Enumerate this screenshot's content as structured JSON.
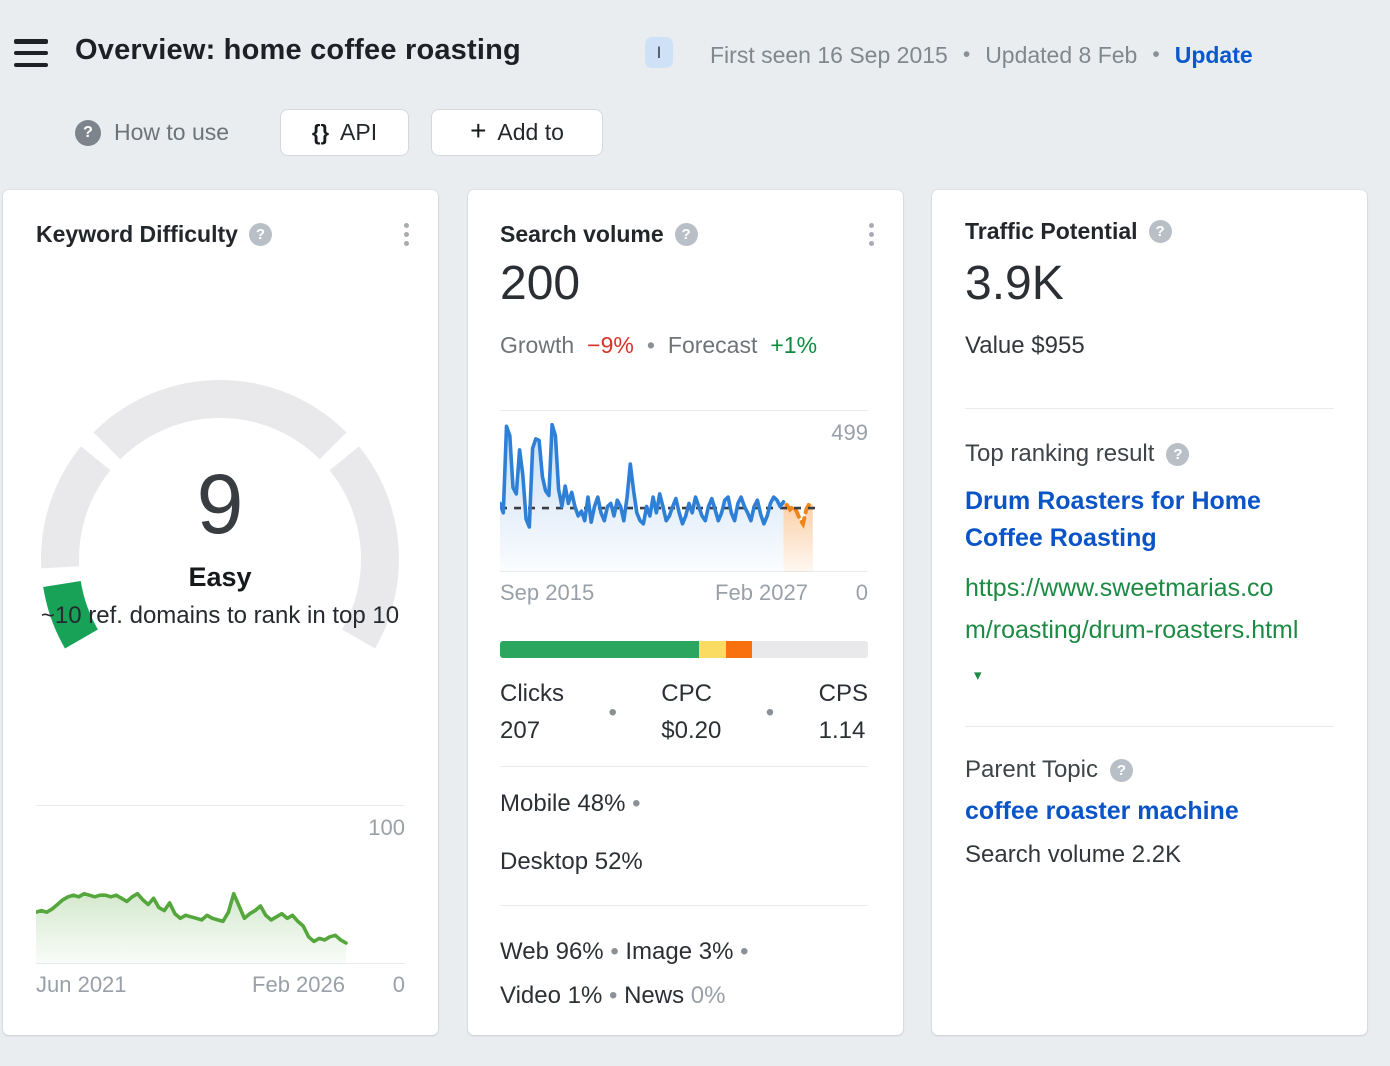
{
  "header": {
    "title": "Overview: home coffee roasting",
    "shortcut_badge": "I",
    "first_seen": "First seen 16 Sep 2015",
    "updated": "Updated 8 Feb",
    "update_link": "Update"
  },
  "toolbar": {
    "how_to_use": "How to use",
    "api_label": "API",
    "add_to_label": "Add to"
  },
  "icons": {
    "question_mark": "?",
    "braces": "{}",
    "plus": "+",
    "caret_down": "▾",
    "bullet": "•"
  },
  "keyword_difficulty": {
    "title": "Keyword Difficulty",
    "score": "9",
    "rating": "Easy",
    "subtitle": "~10 ref. domains to rank in top 10"
  },
  "search_volume": {
    "title": "Search volume",
    "value": "200",
    "growth_label": "Growth",
    "growth_value": "−9%",
    "forecast_label": "Forecast",
    "forecast_value": "+1%",
    "clicks_label": "Clicks",
    "clicks_value": "207",
    "cpc_label": "CPC",
    "cpc_value": "$0.20",
    "cps_label": "CPS",
    "cps_value": "1.14",
    "mobile_label": "Mobile",
    "mobile_value": "48%",
    "desktop_label": "Desktop",
    "desktop_value": "52%",
    "web_label": "Web",
    "web_value": "96%",
    "image_label": "Image",
    "image_value": "3%",
    "video_label": "Video",
    "video_value": "1%",
    "news_label": "News",
    "news_value": "0%"
  },
  "traffic_potential": {
    "title": "Traffic Potential",
    "value": "3.9K",
    "value_line": "Value $955",
    "top_ranking_label": "Top ranking result",
    "top_ranking_title": "Drum Roasters for Home Coffee Roasting",
    "top_ranking_url": "https://www.sweetmarias.com/roasting/drum-roasters.html",
    "parent_topic_label": "Parent Topic",
    "parent_topic": "coffee roaster machine",
    "parent_topic_volume": "Search volume 2.2K"
  },
  "chart_data": [
    {
      "type": "gauge",
      "name": "keyword-difficulty-gauge",
      "value": 9,
      "max": 100,
      "segment_boundaries": [
        0,
        10,
        30,
        70,
        100
      ],
      "start_angle": 210,
      "end_angle": -30,
      "gap_degrees": 3,
      "track_color": "#e9e9eb",
      "fill_color": "#17a257",
      "center_label": "9",
      "rating_label": "Easy",
      "annotation": "~10 ref. domains to rank in top 10"
    },
    {
      "type": "area",
      "name": "keyword-difficulty-history",
      "xlabel_left": "Jun 2021",
      "xlabel_right": "Feb 2026",
      "y_top_label": "100",
      "y_zero_label": "0",
      "ylim": [
        0,
        100
      ],
      "extent": 0.84,
      "line_color": "#55a63c",
      "fill_from": "rgba(85,166,60,0.25)",
      "fill_to": "rgba(85,166,60,0.03)",
      "values": [
        33,
        34,
        33,
        35,
        38,
        41,
        43,
        44,
        43,
        45,
        44,
        43,
        44,
        44,
        43,
        44,
        42,
        40,
        43,
        45,
        41,
        38,
        42,
        36,
        34,
        39,
        32,
        29,
        31,
        30,
        29,
        28,
        31,
        29,
        28,
        27,
        33,
        45,
        37,
        29,
        32,
        34,
        37,
        31,
        28,
        30,
        32,
        29,
        31,
        27,
        24,
        17,
        14,
        16,
        15,
        17,
        18,
        15,
        13
      ]
    },
    {
      "type": "area",
      "name": "search-volume-history",
      "xlabel_left": "Sep 2015",
      "xlabel_right": "Feb 2027",
      "y_top_label": "499",
      "y_zero_label": "0",
      "ylim": [
        0,
        499
      ],
      "extent": 0.85,
      "line_color": "#2e7fd6",
      "fill_from": "rgba(58,131,216,0.28)",
      "fill_to": "rgba(58,131,216,0.02)",
      "dashed_value": 200,
      "dashed_color": "#3a3e43",
      "values": [
        215,
        185,
        460,
        430,
        265,
        245,
        385,
        305,
        165,
        140,
        390,
        420,
        415,
        300,
        255,
        240,
        465,
        430,
        260,
        205,
        270,
        215,
        250,
        205,
        175,
        190,
        160,
        235,
        155,
        205,
        235,
        185,
        160,
        205,
        215,
        175,
        225,
        205,
        160,
        235,
        340,
        255,
        185,
        160,
        150,
        205,
        175,
        235,
        185,
        245,
        205,
        160,
        175,
        205,
        230,
        185,
        150,
        175,
        215,
        185,
        235,
        205,
        175,
        160,
        205,
        230,
        195,
        160,
        185,
        225,
        235,
        185,
        160,
        215,
        235,
        205,
        185,
        160,
        205,
        225,
        180,
        150,
        175,
        215,
        235,
        225,
        205,
        220
      ],
      "forecast": {
        "color": "#f0861a",
        "fill_from": "rgba(243,130,20,0.38)",
        "fill_to": "rgba(243,130,20,0.06)",
        "values": [
          210,
          195,
          205,
          190,
          165,
          150,
          195,
          215,
          210
        ]
      }
    },
    {
      "type": "bar",
      "name": "clicks-distribution",
      "segments": [
        {
          "color": "#2aa65f",
          "pct": 54
        },
        {
          "color": "#fbdc62",
          "pct": 7.5
        },
        {
          "color": "#f9700f",
          "pct": 7
        },
        {
          "color": "#e9e9eb",
          "pct": 31.5
        }
      ]
    }
  ]
}
